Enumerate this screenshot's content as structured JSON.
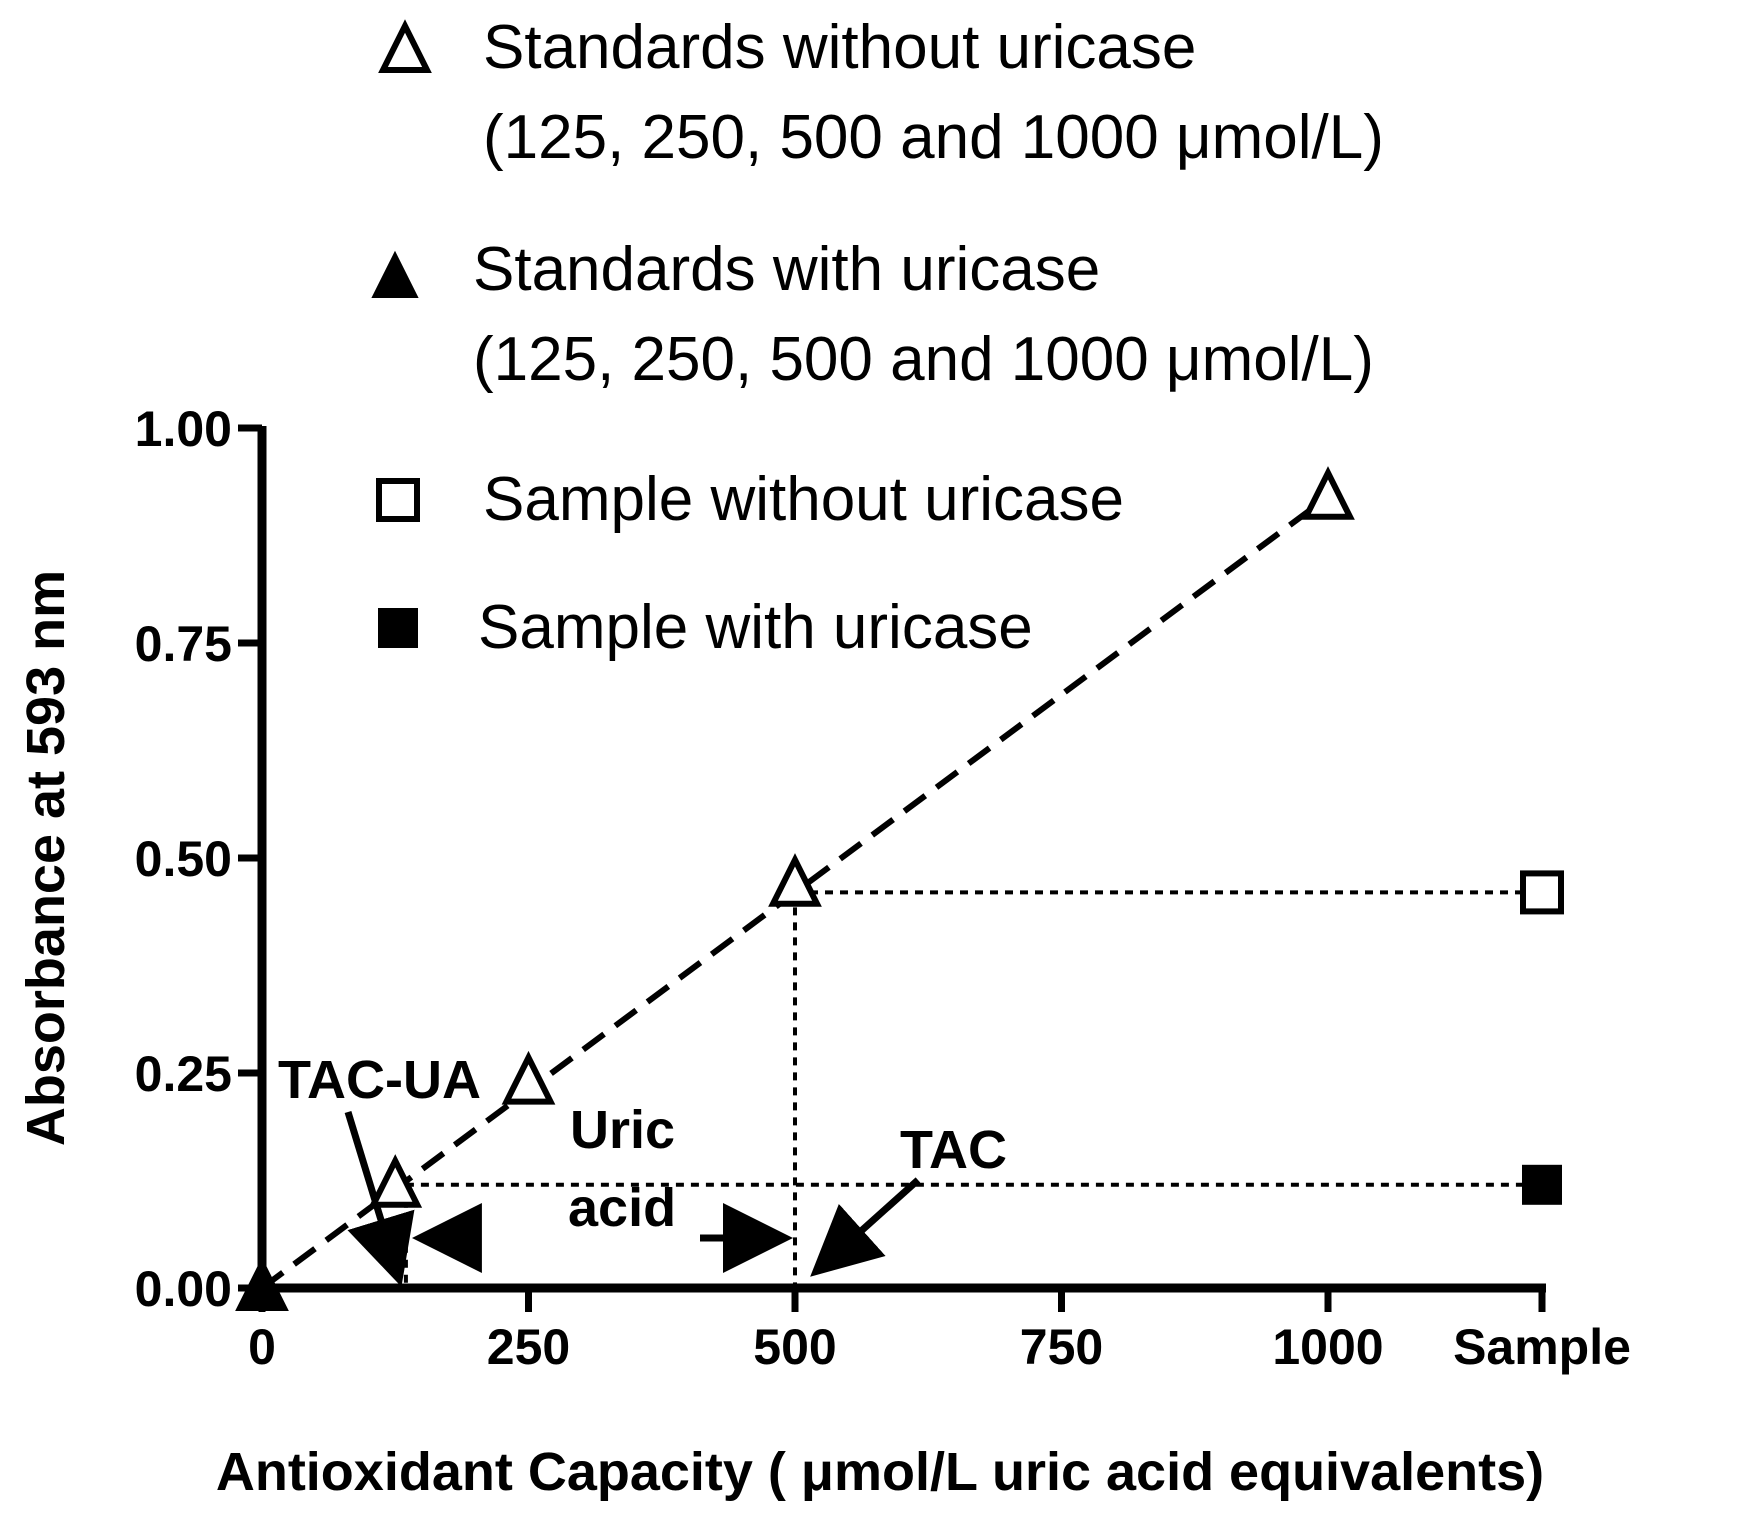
{
  "chart_data": {
    "type": "scatter",
    "xlabel": "Antioxidant Capacity ( μmol/L uric acid equivalents)",
    "ylabel": "Absorbance at 593 nm",
    "xlim": [
      0,
      1200
    ],
    "ylim": [
      0,
      1.0
    ],
    "x_ticks": [
      "0",
      "250",
      "500",
      "750",
      "1000",
      "Sample"
    ],
    "y_ticks": [
      "0.00",
      "0.25",
      "0.50",
      "0.75",
      "1.00"
    ],
    "series": [
      {
        "name": "Standards without uricase",
        "marker": "open-triangle",
        "x": [
          0,
          125,
          250,
          500,
          1000
        ],
        "y": [
          0.0,
          0.12,
          0.24,
          0.47,
          0.92
        ]
      },
      {
        "name": "Standards with uricase",
        "marker": "filled-triangle",
        "x": [
          0
        ],
        "y": [
          0.0
        ]
      },
      {
        "name": "Sample without uricase",
        "marker": "open-square",
        "x": [
          "Sample"
        ],
        "y": [
          0.46
        ]
      },
      {
        "name": "Sample with uricase",
        "marker": "filled-square",
        "x": [
          "Sample"
        ],
        "y": [
          0.12
        ]
      }
    ],
    "fit_line": {
      "style": "dashed",
      "x": [
        0,
        1000
      ],
      "y": [
        0.0,
        0.92
      ]
    },
    "reference_lines": [
      {
        "style": "dotted",
        "from": [
          500,
          0.46
        ],
        "to": [
          "Sample",
          0.46
        ]
      },
      {
        "style": "dotted",
        "from": [
          500,
          0.46
        ],
        "to": [
          500,
          0.0
        ]
      },
      {
        "style": "dotted",
        "from": [
          135,
          0.12
        ],
        "to": [
          "Sample",
          0.12
        ]
      },
      {
        "style": "dotted",
        "from": [
          135,
          0.12
        ],
        "to": [
          135,
          0.0
        ]
      }
    ],
    "legend": {
      "placement": "top",
      "entries": [
        {
          "marker": "open-triangle",
          "lines": [
            "Standards without uricase",
            "(125, 250, 500 and 1000  μmol/L)"
          ]
        },
        {
          "marker": "filled-triangle",
          "lines": [
            "Standards with uricase",
            "(125, 250, 500 and 1000  μmol/L)"
          ]
        },
        {
          "marker": "open-square",
          "lines": [
            "Sample without uricase"
          ]
        },
        {
          "marker": "filled-square",
          "lines": [
            "Sample with uricase"
          ]
        }
      ]
    },
    "annotations": [
      {
        "text": "TAC-UA",
        "points_to_x": 125
      },
      {
        "text": "Uric",
        "line2": "acid",
        "spans_x": [
          135,
          500
        ]
      },
      {
        "text": "TAC",
        "points_to_x": 500
      }
    ],
    "grid": false
  }
}
